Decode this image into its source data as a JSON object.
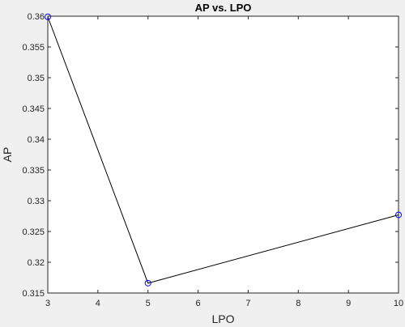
{
  "chart_data": {
    "type": "line",
    "title": "AP vs. LPO",
    "xlabel": "LPO",
    "ylabel": "AP",
    "xlim": [
      3,
      10
    ],
    "ylim": [
      0.315,
      0.36
    ],
    "xticks": [
      3,
      4,
      5,
      6,
      7,
      8,
      9,
      10
    ],
    "yticks": [
      0.315,
      0.32,
      0.325,
      0.33,
      0.335,
      0.34,
      0.345,
      0.35,
      0.355,
      0.36
    ],
    "ytick_labels": [
      "0.315",
      "0.32",
      "0.325",
      "0.33",
      "0.335",
      "0.34",
      "0.345",
      "0.35",
      "0.355",
      "0.36"
    ],
    "grid": false,
    "series": [
      {
        "x": [
          3,
          5,
          10
        ],
        "y": [
          0.3599,
          0.3166,
          0.3277
        ],
        "line_color": "#000000",
        "marker": "circle",
        "marker_color": "#0000ff"
      }
    ]
  }
}
